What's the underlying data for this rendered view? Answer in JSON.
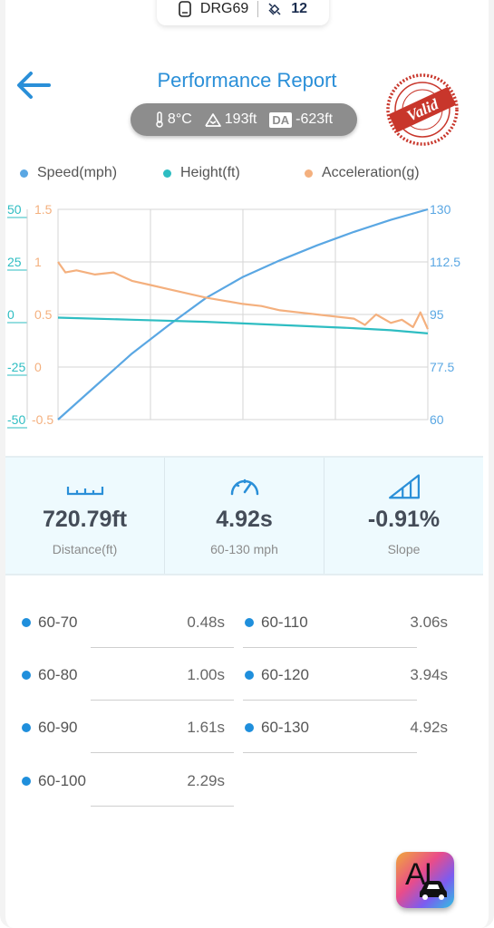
{
  "device": {
    "name": "DRG69",
    "satellites": "12"
  },
  "header": {
    "title": "Performance Report"
  },
  "conditions": {
    "temperature": "8°C",
    "elevation": "193ft",
    "da_badge": "DA",
    "density_altitude": "-623ft"
  },
  "stamp": {
    "text": "Valid",
    "color": "#c8362b"
  },
  "legend": [
    {
      "label": "Speed(mph)",
      "color": "#5aa7e3"
    },
    {
      "label": "Height(ft)",
      "color": "#2ebdc2"
    },
    {
      "label": "Acceleration(g)",
      "color": "#f4b07e"
    }
  ],
  "chart_data": {
    "type": "line",
    "grid": true,
    "legend_position": "top",
    "xlabel": "",
    "axes": {
      "height_ticks": [
        "50",
        "25",
        "0",
        "-25",
        "-50"
      ],
      "height_range": [
        -50,
        50
      ],
      "accel_ticks": [
        "1.5",
        "1",
        "0.5",
        "0",
        "-0.5"
      ],
      "accel_range": [
        -0.5,
        1.5
      ],
      "speed_ticks": [
        "130",
        "112.5",
        "95",
        "77.5",
        "60"
      ],
      "speed_range": [
        60,
        130
      ]
    },
    "series": [
      {
        "name": "Speed(mph)",
        "axis": "speed",
        "color": "#5aa7e3",
        "x": [
          0,
          0.1,
          0.2,
          0.3,
          0.4,
          0.5,
          0.6,
          0.7,
          0.8,
          0.9,
          1.0
        ],
        "values": [
          60,
          71,
          82,
          91.5,
          100.5,
          107.5,
          113,
          118,
          122.5,
          126.5,
          130
        ]
      },
      {
        "name": "Height(ft)",
        "axis": "height",
        "color": "#2ebdc2",
        "x": [
          0,
          0.2,
          0.4,
          0.6,
          0.8,
          0.9,
          1.0
        ],
        "values": [
          -1.5,
          -2.5,
          -3.5,
          -5,
          -6.5,
          -7.5,
          -9
        ]
      },
      {
        "name": "Acceleration(g)",
        "axis": "accel",
        "color": "#f4b07e",
        "x": [
          0,
          0.02,
          0.05,
          0.1,
          0.15,
          0.2,
          0.25,
          0.3,
          0.35,
          0.4,
          0.45,
          0.5,
          0.55,
          0.6,
          0.65,
          0.7,
          0.75,
          0.8,
          0.83,
          0.86,
          0.9,
          0.93,
          0.96,
          0.98,
          1.0
        ],
        "values": [
          1.0,
          0.9,
          0.92,
          0.88,
          0.9,
          0.82,
          0.78,
          0.74,
          0.7,
          0.66,
          0.63,
          0.6,
          0.58,
          0.54,
          0.52,
          0.5,
          0.48,
          0.46,
          0.4,
          0.5,
          0.42,
          0.45,
          0.38,
          0.52,
          0.36
        ]
      }
    ]
  },
  "stats": {
    "distance": {
      "value": "720.79ft",
      "label": "Distance(ft)"
    },
    "time": {
      "value": "4.92s",
      "label": "60-130 mph"
    },
    "slope": {
      "value": "-0.91%",
      "label": "Slope"
    }
  },
  "splits": [
    {
      "range": "60-70",
      "time": "0.48s"
    },
    {
      "range": "60-80",
      "time": "1.00s"
    },
    {
      "range": "60-90",
      "time": "1.61s"
    },
    {
      "range": "60-100",
      "time": "2.29s"
    },
    {
      "range": "60-110",
      "time": "3.06s"
    },
    {
      "range": "60-120",
      "time": "3.94s"
    },
    {
      "range": "60-130",
      "time": "4.92s"
    }
  ],
  "ai_button": {
    "label": "AI"
  }
}
